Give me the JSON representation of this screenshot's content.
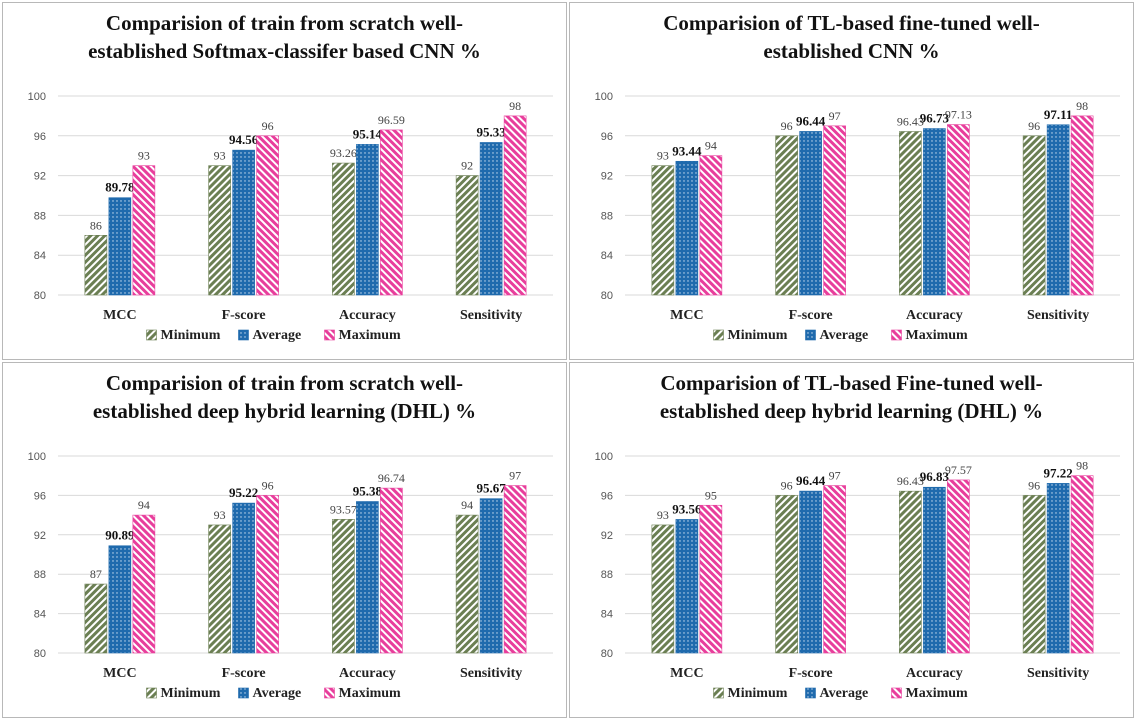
{
  "legend": [
    "Minimum",
    "Average",
    "Maximum"
  ],
  "colors": {
    "minimum": "#6b7f53",
    "average": "#1f6aad",
    "maximum": "#e83e9c"
  },
  "chart_data": [
    {
      "type": "bar",
      "title_lines": [
        "Comparision of train from scratch well-",
        "established Softmax-classifer based CNN %"
      ],
      "categories": [
        "MCC",
        "F-score",
        "Accuracy",
        "Sensitivity"
      ],
      "ylim": [
        80,
        100
      ],
      "yticks": [
        80,
        84,
        88,
        92,
        96,
        100
      ],
      "series": [
        {
          "name": "Minimum",
          "values": [
            86,
            93,
            93.26,
            92
          ],
          "labels": [
            "86",
            "93",
            "93.26",
            "92"
          ]
        },
        {
          "name": "Average",
          "values": [
            89.78,
            94.56,
            95.14,
            95.33
          ],
          "labels": [
            "89.78",
            "94.56",
            "95.14",
            "95.33"
          ]
        },
        {
          "name": "Maximum",
          "values": [
            93,
            96,
            96.59,
            98
          ],
          "labels": [
            "93",
            "96",
            "96.59",
            "98"
          ]
        }
      ]
    },
    {
      "type": "bar",
      "title_lines": [
        "Comparision of TL-based fine-tuned well-",
        "established CNN %"
      ],
      "categories": [
        "MCC",
        "F-score",
        "Accuracy",
        "Sensitivity"
      ],
      "ylim": [
        80,
        100
      ],
      "yticks": [
        80,
        84,
        88,
        92,
        96,
        100
      ],
      "series": [
        {
          "name": "Minimum",
          "values": [
            93,
            96,
            96.43,
            96
          ],
          "labels": [
            "93",
            "96",
            "96.43",
            "96"
          ]
        },
        {
          "name": "Average",
          "values": [
            93.44,
            96.44,
            96.73,
            97.11
          ],
          "labels": [
            "93.44",
            "96.44",
            "96.73",
            "97.11"
          ]
        },
        {
          "name": "Maximum",
          "values": [
            94,
            97,
            97.13,
            98
          ],
          "labels": [
            "94",
            "97",
            "97.13",
            "98"
          ]
        }
      ]
    },
    {
      "type": "bar",
      "title_lines": [
        "Comparision of train from scratch well-",
        "established deep hybrid learning (DHL) %"
      ],
      "categories": [
        "MCC",
        "F-score",
        "Accuracy",
        "Sensitivity"
      ],
      "ylim": [
        80,
        100
      ],
      "yticks": [
        80,
        84,
        88,
        92,
        96,
        100
      ],
      "series": [
        {
          "name": "Minimum",
          "values": [
            87,
            93,
            93.57,
            94
          ],
          "labels": [
            "87",
            "93",
            "93.57",
            "94"
          ]
        },
        {
          "name": "Average",
          "values": [
            90.89,
            95.22,
            95.38,
            95.67
          ],
          "labels": [
            "90.89",
            "95.22",
            "95.38",
            "95.67"
          ]
        },
        {
          "name": "Maximum",
          "values": [
            94,
            96,
            96.74,
            97
          ],
          "labels": [
            "94",
            "96",
            "96.74",
            "97"
          ]
        }
      ]
    },
    {
      "type": "bar",
      "title_lines": [
        "Comparision of TL-based Fine-tuned well-",
        "established deep hybrid learning (DHL) %"
      ],
      "categories": [
        "MCC",
        "F-score",
        "Accuracy",
        "Sensitivity"
      ],
      "ylim": [
        80,
        100
      ],
      "yticks": [
        80,
        84,
        88,
        92,
        96,
        100
      ],
      "series": [
        {
          "name": "Minimum",
          "values": [
            93,
            96,
            96.43,
            96
          ],
          "labels": [
            "93",
            "96",
            "96.43",
            "96"
          ]
        },
        {
          "name": "Average",
          "values": [
            93.56,
            96.44,
            96.83,
            97.22
          ],
          "labels": [
            "93.56",
            "96.44",
            "96.83",
            "97.22"
          ]
        },
        {
          "name": "Maximum",
          "values": [
            95,
            97,
            97.57,
            98
          ],
          "labels": [
            "95",
            "97",
            "97.57",
            "98"
          ]
        }
      ]
    }
  ]
}
